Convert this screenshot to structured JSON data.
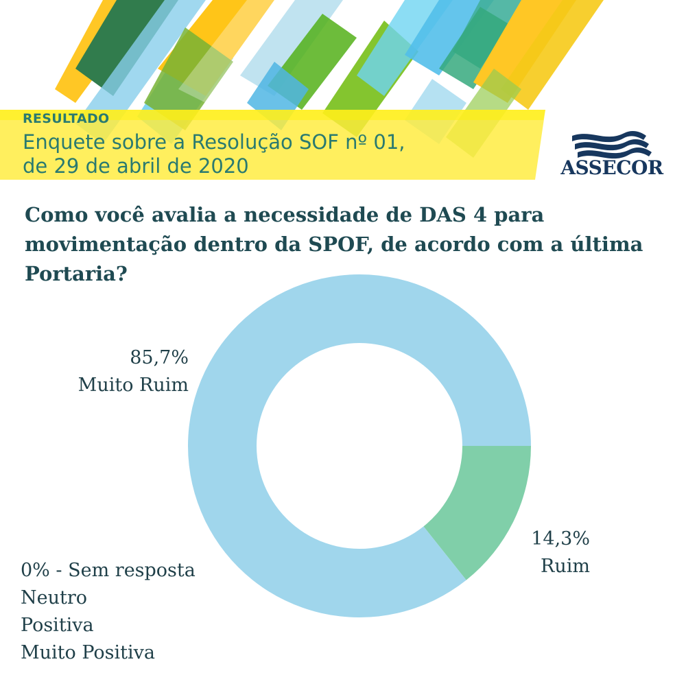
{
  "header": {
    "kicker": "RESULTADO",
    "title_line1": "Enquete sobre a Resolução SOF nº 01,",
    "title_line2": "de 29 de abril de 2020"
  },
  "logo": {
    "icon": "waves-icon",
    "text": "ASSECOR",
    "color": "#17375e"
  },
  "question": "Como você avalia a necessidade de DAS 4 para movimentação dentro da SPOF, de acordo com a última Portaria?",
  "chart_data": {
    "type": "pie",
    "donut": true,
    "slices": [
      {
        "label": "Muito Ruim",
        "value": 85.7,
        "value_label": "85,7%",
        "color": "#a0d6ec"
      },
      {
        "label": "Ruim",
        "value": 14.3,
        "value_label": "14,3%",
        "color": "#80cfa9"
      }
    ],
    "zero_note": "0% - Sem resposta",
    "zero_categories": [
      "Neutro",
      "Positiva",
      "Muito Positiva"
    ]
  }
}
